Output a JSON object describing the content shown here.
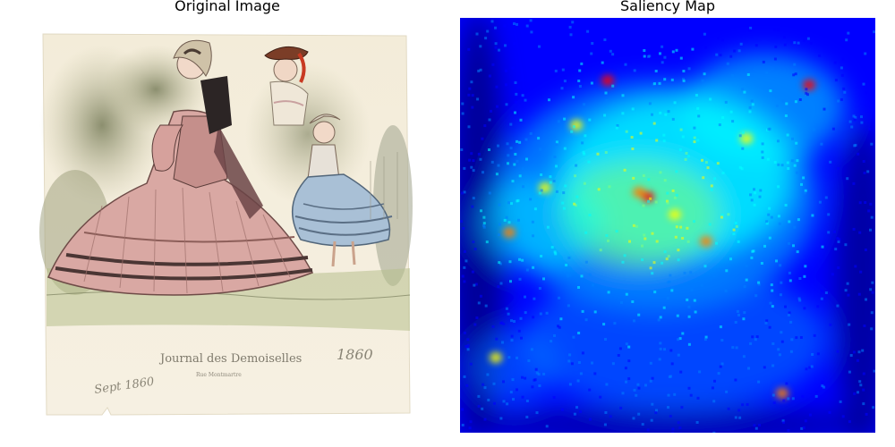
{
  "panels": {
    "left": {
      "title": "Original Image",
      "inscriptions": {
        "caption": "Journal des Demoiselles",
        "subcaption": "Rue Montmartre",
        "year_right": "1860",
        "date_left": "Sept 1860"
      }
    },
    "right": {
      "title": "Saliency Map",
      "colormap": [
        "#00007f",
        "#0000ff",
        "#007fff",
        "#00ffff",
        "#7fff7f",
        "#ffff00",
        "#ff7f00",
        "#ff0000"
      ]
    }
  }
}
